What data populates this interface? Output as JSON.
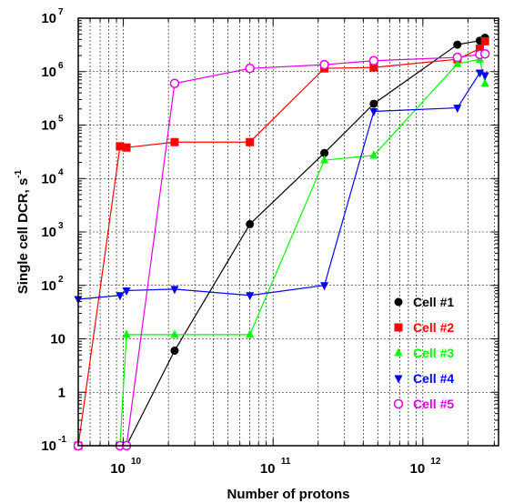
{
  "chart_data": {
    "type": "line",
    "xlabel": "Number of protons",
    "ylabel": "Single cell DCR, s",
    "ylabel_superscript": "-1",
    "x_scale": "log",
    "y_scale": "log",
    "xlim": [
      5000000000.0,
      3200000000000.0
    ],
    "ylim": [
      0.1,
      10000000.0
    ],
    "x_ticks": [
      {
        "value": 10000000000.0,
        "base": "10",
        "exp": "10"
      },
      {
        "value": 100000000000.0,
        "base": "10",
        "exp": "11"
      },
      {
        "value": 1000000000000.0,
        "base": "10",
        "exp": "12"
      }
    ],
    "y_ticks": [
      {
        "value": 0.1,
        "base": "10",
        "exp": "-1"
      },
      {
        "value": 1,
        "base": "1",
        "exp": ""
      },
      {
        "value": 10,
        "base": "10",
        "exp": ""
      },
      {
        "value": 100,
        "base": "10",
        "exp": "2"
      },
      {
        "value": 1000,
        "base": "10",
        "exp": "3"
      },
      {
        "value": 10000,
        "base": "10",
        "exp": "4"
      },
      {
        "value": 100000,
        "base": "10",
        "exp": "5"
      },
      {
        "value": 1000000,
        "base": "10",
        "exp": "6"
      },
      {
        "value": 10000000,
        "base": "10",
        "exp": "7"
      }
    ],
    "grid": true,
    "legend_position": "bottom-right",
    "series": [
      {
        "name": "Cell #1",
        "color": "#000000",
        "marker": "circle",
        "x": [
          10500000000.0,
          22000000000.0,
          70000000000.0,
          220000000000.0,
          470000000000.0,
          1700000000000.0,
          2400000000000.0,
          2600000000000.0
        ],
        "y": [
          0.1,
          6,
          1400,
          30000,
          250000,
          3200000,
          3800000,
          4300000
        ]
      },
      {
        "name": "Cell #2",
        "color": "#ff0000",
        "marker": "square",
        "x": [
          5000000000.0,
          9500000000.0,
          10500000000.0,
          22000000000.0,
          70000000000.0,
          220000000000.0,
          470000000000.0,
          1700000000000.0,
          2400000000000.0,
          2600000000000.0
        ],
        "y": [
          0.1,
          40000,
          38000,
          48000,
          48000,
          1150000,
          1200000,
          1700000,
          2700000,
          3700000
        ]
      },
      {
        "name": "Cell #3",
        "color": "#00ff00",
        "marker": "triangle-up",
        "x": [
          9500000000.0,
          10500000000.0,
          22000000000.0,
          70000000000.0,
          220000000000.0,
          470000000000.0,
          1700000000000.0,
          2400000000000.0,
          2600000000000.0
        ],
        "y": [
          0.1,
          12,
          12,
          12,
          22000,
          27000,
          1400000,
          1700000,
          600000
        ]
      },
      {
        "name": "Cell #4",
        "color": "#0000ff",
        "marker": "triangle-down",
        "x": [
          5000000000.0,
          9500000000.0,
          10500000000.0,
          22000000000.0,
          70000000000.0,
          220000000000.0,
          470000000000.0,
          1700000000000.0,
          2400000000000.0,
          2600000000000.0
        ],
        "y": [
          55,
          65,
          80,
          85,
          65,
          100,
          180000,
          210000,
          950000,
          850000
        ]
      },
      {
        "name": "Cell #5",
        "color": "#e000e0",
        "marker": "circle-open",
        "x": [
          5000000000.0,
          9500000000.0,
          10500000000.0,
          22000000000.0,
          70000000000.0,
          220000000000.0,
          470000000000.0,
          1700000000000.0,
          2400000000000.0,
          2600000000000.0
        ],
        "y": [
          0.1,
          0.1,
          0.1,
          600000,
          1150000,
          1350000,
          1600000,
          1850000,
          2100000,
          2150000
        ]
      }
    ]
  }
}
